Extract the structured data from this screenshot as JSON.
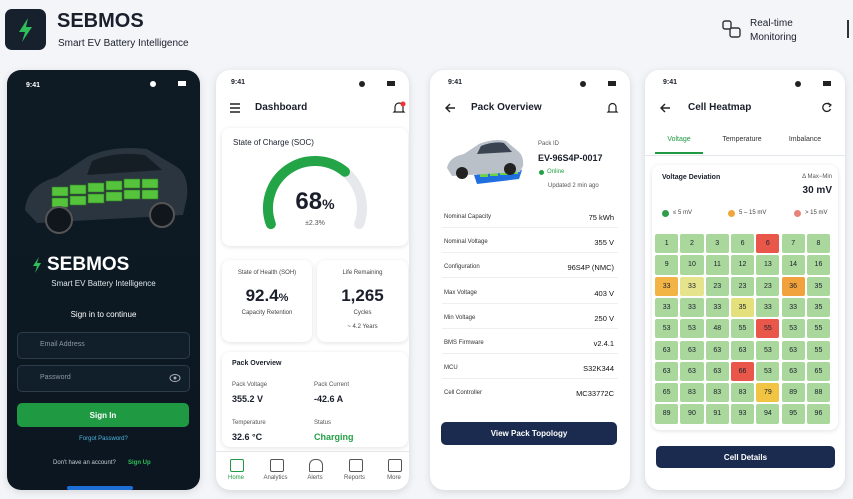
{
  "header": {
    "brand": "SEBMOS",
    "tagline": "Smart EV Battery Intelligence",
    "feature": "Real-time Monitoring"
  },
  "login": {
    "time": "9:41",
    "brand": "SEBMOS",
    "tagline": "Smart EV Battery Intelligence",
    "prompt": "Sign in to continue",
    "email_placeholder": "Email Address",
    "password_placeholder": "Password",
    "button": "Sign In",
    "forgot": "Forgot Password?",
    "signup_prompt": "Don't have an account?",
    "signup": "Sign Up"
  },
  "dashboard": {
    "time": "9:41",
    "title": "Dashboard",
    "soc": {
      "title": "State of Charge (SOC)",
      "value": 68,
      "unit": "%",
      "delta": "±2.3%"
    },
    "soh": {
      "title": "State of Health (SOH)",
      "value": "92.4",
      "unit": "%",
      "caption": "Capacity Retention"
    },
    "life": {
      "title": "Life Remaining",
      "value": "1,265",
      "unit": "Cycles",
      "caption": "~ 4.2 Years"
    },
    "pack": {
      "title": "Pack Overview",
      "items": [
        {
          "label": "Pack Voltage",
          "value": "355.2 V"
        },
        {
          "label": "Pack Current",
          "value": "-42.6 A"
        },
        {
          "label": "Temperature",
          "value": "32.6 °C"
        },
        {
          "label": "Status",
          "value": "Charging"
        }
      ]
    },
    "nav": [
      "Home",
      "Analytics",
      "Alerts",
      "Reports",
      "More"
    ]
  },
  "pack_overview": {
    "time": "9:41",
    "title": "Pack Overview",
    "id_label": "Pack ID",
    "id": "EV-96S4P-0017",
    "status": "Online",
    "updated": "Updated 2 min ago",
    "rows": [
      {
        "label": "Nominal Capacity",
        "value": "75 kWh"
      },
      {
        "label": "Nominal Voltage",
        "value": "355 V"
      },
      {
        "label": "Configuration",
        "value": "96S4P (NMC)"
      },
      {
        "label": "Max Voltage",
        "value": "403 V"
      },
      {
        "label": "Min Voltage",
        "value": "250 V"
      },
      {
        "label": "BMS Firmware",
        "value": "v2.4.1"
      },
      {
        "label": "MCU",
        "value": "S32K344"
      },
      {
        "label": "Cell Controller",
        "value": "MC33772C"
      }
    ],
    "button": "View Pack Topology"
  },
  "heatmap": {
    "time": "9:41",
    "title": "Cell Heatmap",
    "tabs": [
      "Voltage",
      "Temperature",
      "Imbalance"
    ],
    "card_title": "Voltage Deviation",
    "delta_label": "Δ Max−Min",
    "delta_value": "30 mV",
    "legend": [
      {
        "label": "≤ 5 mV",
        "color": "#2e9d4a"
      },
      {
        "label": "5 – 15 mV",
        "color": "#f0a63a"
      },
      {
        "label": "> 15 mV",
        "color": "#e8837a"
      }
    ],
    "cells": [
      [
        "1",
        "2",
        "3",
        "6",
        "6",
        "7",
        "8"
      ],
      [
        "9",
        "10",
        "11",
        "12",
        "13",
        "14",
        "16"
      ],
      [
        "33",
        "33",
        "23",
        "23",
        "23",
        "36",
        "35"
      ],
      [
        "33",
        "33",
        "33",
        "35",
        "33",
        "33",
        "35"
      ],
      [
        "53",
        "53",
        "48",
        "55",
        "55",
        "53",
        "55"
      ],
      [
        "63",
        "63",
        "63",
        "63",
        "53",
        "63",
        "55"
      ],
      [
        "63",
        "63",
        "63",
        "66",
        "53",
        "63",
        "65"
      ],
      [
        "65",
        "83",
        "83",
        "83",
        "79",
        "89",
        "88"
      ],
      [
        "89",
        "90",
        "91",
        "93",
        "94",
        "95",
        "96"
      ]
    ],
    "colors": [
      [
        "#a9d79c",
        "#a9d79c",
        "#a9d79c",
        "#a9d79c",
        "#e8574a",
        "#a9d79c",
        "#a9d79c"
      ],
      [
        "#a9d79c",
        "#a9d79c",
        "#a9d79c",
        "#a9d79c",
        "#a9d79c",
        "#a9d79c",
        "#a9d79c"
      ],
      [
        "#f2b445",
        "#e5e38c",
        "#a9d79c",
        "#a9d79c",
        "#a9d79c",
        "#f2a23c",
        "#a9d79c"
      ],
      [
        "#a9d79c",
        "#a9d79c",
        "#a9d79c",
        "#e4e07c",
        "#a9d79c",
        "#a9d79c",
        "#a9d79c"
      ],
      [
        "#a9d79c",
        "#a9d79c",
        "#a9d79c",
        "#a9d79c",
        "#e8574a",
        "#a9d79c",
        "#a9d79c"
      ],
      [
        "#a9d79c",
        "#a9d79c",
        "#a9d79c",
        "#a9d79c",
        "#a9d79c",
        "#a9d79c",
        "#a9d79c"
      ],
      [
        "#a9d79c",
        "#a9d79c",
        "#a9d79c",
        "#e8574a",
        "#a9d79c",
        "#a9d79c",
        "#a9d79c"
      ],
      [
        "#a9d79c",
        "#a9d79c",
        "#a9d79c",
        "#a9d79c",
        "#f2c443",
        "#a9d79c",
        "#a9d79c"
      ],
      [
        "#a9d79c",
        "#a9d79c",
        "#a9d79c",
        "#a9d79c",
        "#a9d79c",
        "#a9d79c",
        "#a9d79c"
      ]
    ],
    "button": "Cell Details"
  }
}
